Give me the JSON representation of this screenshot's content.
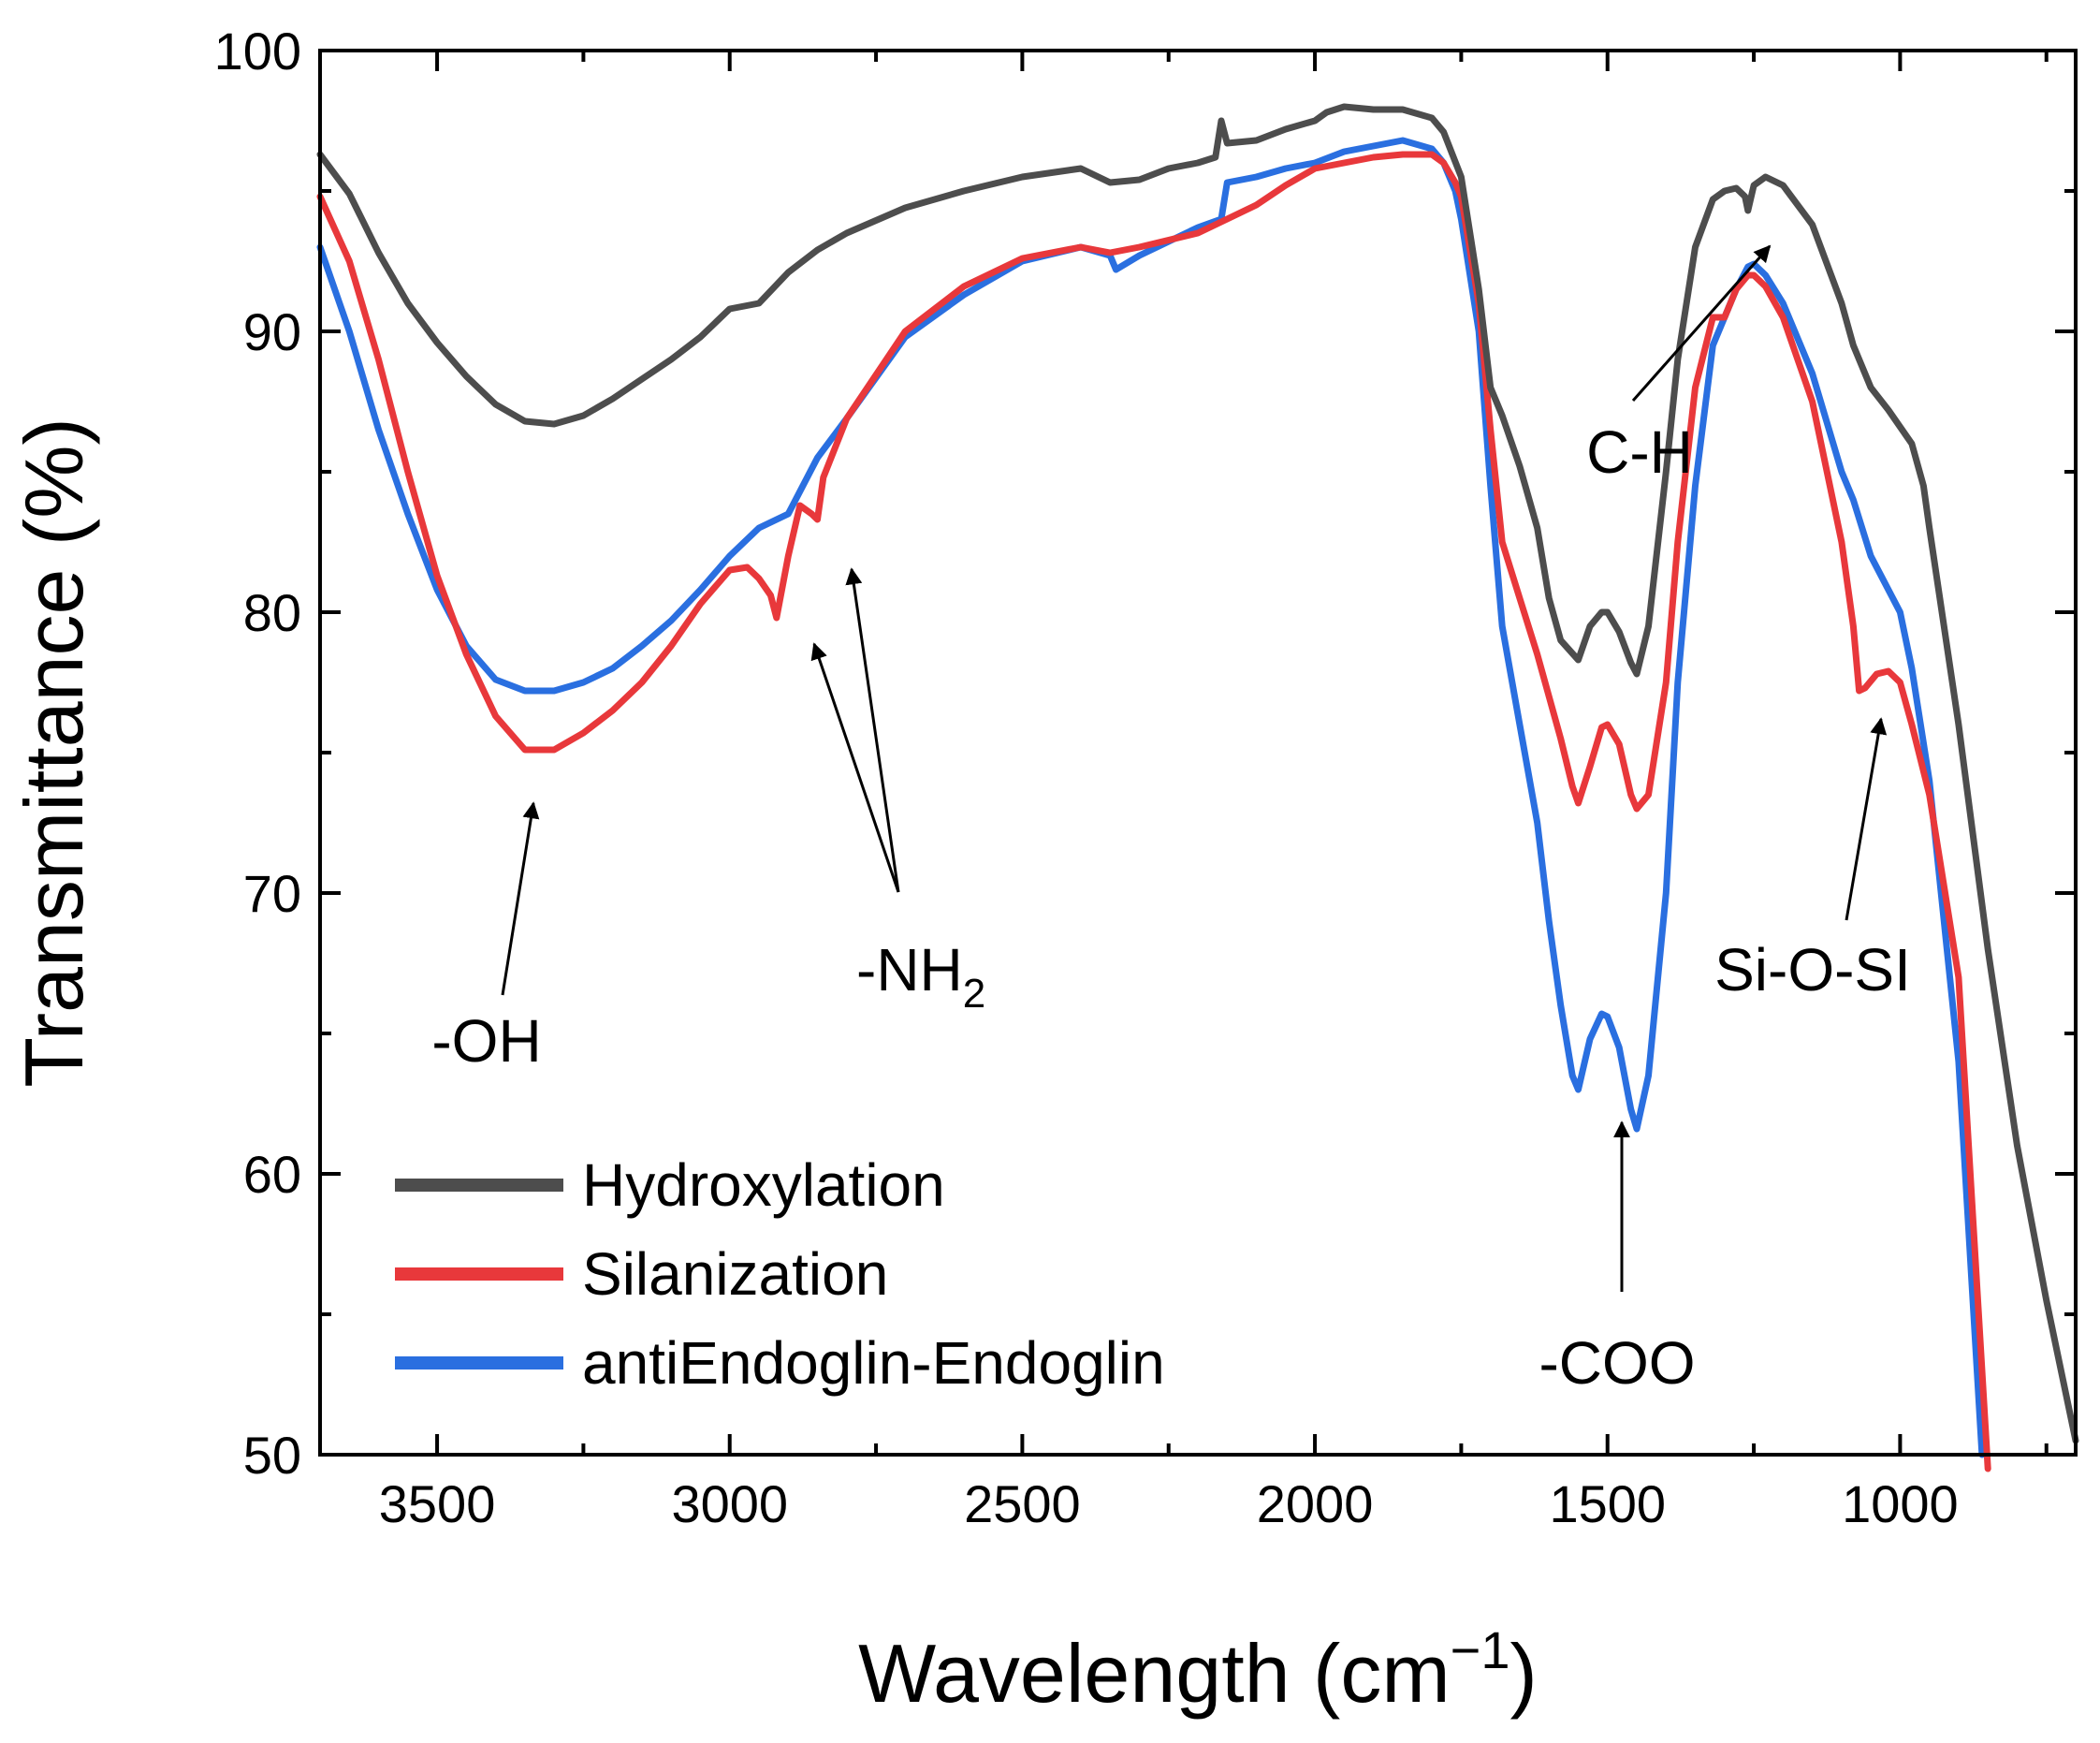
{
  "chart_data": {
    "type": "line",
    "title": "",
    "xlabel": "Wavelength (cm",
    "xlabel_sup": "−1",
    "xlabel_close": ")",
    "ylabel": "Transmittance (%)",
    "xlim": [
      3700,
      700
    ],
    "ylim": [
      50,
      100
    ],
    "x_ticks": [
      3500,
      3000,
      2500,
      2000,
      1500,
      1000
    ],
    "x_tick_labels": [
      "3500",
      "3000",
      "2500",
      "2000",
      "1500",
      "1000"
    ],
    "y_ticks": [
      50,
      60,
      70,
      80,
      90,
      100
    ],
    "y_tick_labels": [
      "50",
      "60",
      "70",
      "80",
      "90",
      "100"
    ],
    "legend_position": "bottom-left",
    "series": [
      {
        "name": "Hydroxylation",
        "color": "#4d4d4d",
        "x": [
          3700,
          3650,
          3600,
          3550,
          3500,
          3450,
          3400,
          3350,
          3300,
          3250,
          3200,
          3150,
          3100,
          3050,
          3000,
          2950,
          2900,
          2850,
          2800,
          2700,
          2600,
          2500,
          2400,
          2350,
          2300,
          2250,
          2200,
          2170,
          2160,
          2150,
          2100,
          2050,
          2000,
          1980,
          1950,
          1900,
          1850,
          1800,
          1780,
          1750,
          1720,
          1700,
          1680,
          1650,
          1620,
          1600,
          1580,
          1550,
          1530,
          1510,
          1500,
          1480,
          1460,
          1450,
          1430,
          1400,
          1380,
          1350,
          1320,
          1300,
          1280,
          1265,
          1260,
          1250,
          1230,
          1200,
          1150,
          1100,
          1080,
          1050,
          1020,
          1000,
          980,
          960,
          950,
          900,
          850,
          800,
          750,
          700
        ],
        "y": [
          96.3,
          94.9,
          92.8,
          91.0,
          89.6,
          88.4,
          87.4,
          86.8,
          86.7,
          87.0,
          87.6,
          88.3,
          89.0,
          89.8,
          90.8,
          91.0,
          92.1,
          92.9,
          93.5,
          94.4,
          95.0,
          95.5,
          95.8,
          95.3,
          95.4,
          95.8,
          96.0,
          96.2,
          97.5,
          96.7,
          96.8,
          97.2,
          97.5,
          97.8,
          98.0,
          97.9,
          97.9,
          97.6,
          97.1,
          95.5,
          91.5,
          88.0,
          87.0,
          85.2,
          83.0,
          80.5,
          79.0,
          78.3,
          79.5,
          80.0,
          80.0,
          79.3,
          78.2,
          77.8,
          79.5,
          85.0,
          89.0,
          93.0,
          94.7,
          95.0,
          95.1,
          94.8,
          94.3,
          95.2,
          95.5,
          95.2,
          93.8,
          91.0,
          89.5,
          88.0,
          87.2,
          86.6,
          86.0,
          84.5,
          83.0,
          76.0,
          68.0,
          61.0,
          55.5,
          50.5
        ]
      },
      {
        "name": "Silanization",
        "color": "#e8383b",
        "x": [
          3700,
          3650,
          3600,
          3550,
          3500,
          3450,
          3400,
          3350,
          3300,
          3250,
          3200,
          3150,
          3100,
          3050,
          3000,
          2970,
          2950,
          2930,
          2920,
          2900,
          2880,
          2860,
          2850,
          2840,
          2800,
          2700,
          2600,
          2500,
          2400,
          2350,
          2300,
          2200,
          2150,
          2100,
          2050,
          2000,
          1950,
          1900,
          1850,
          1800,
          1780,
          1760,
          1750,
          1720,
          1700,
          1680,
          1650,
          1620,
          1600,
          1580,
          1560,
          1550,
          1530,
          1510,
          1500,
          1480,
          1460,
          1450,
          1430,
          1400,
          1380,
          1350,
          1320,
          1300,
          1280,
          1260,
          1250,
          1230,
          1200,
          1150,
          1100,
          1080,
          1070,
          1060,
          1040,
          1020,
          1000,
          980,
          950,
          900,
          850
        ],
        "y": [
          94.8,
          92.5,
          89.0,
          85.0,
          81.3,
          78.5,
          76.3,
          75.1,
          75.1,
          75.7,
          76.5,
          77.5,
          78.8,
          80.3,
          81.5,
          81.6,
          81.2,
          80.6,
          79.8,
          82.0,
          83.8,
          83.5,
          83.3,
          84.8,
          86.9,
          90.0,
          91.6,
          92.6,
          93.0,
          92.8,
          93.0,
          93.5,
          94.0,
          94.5,
          95.2,
          95.8,
          96.0,
          96.2,
          96.3,
          96.3,
          96.0,
          95.3,
          94.8,
          91.0,
          86.5,
          82.5,
          80.5,
          78.5,
          77.0,
          75.5,
          73.8,
          73.2,
          74.5,
          75.9,
          76.0,
          75.3,
          73.5,
          73.0,
          73.5,
          77.5,
          82.5,
          88.0,
          90.5,
          90.5,
          91.5,
          92.0,
          92.0,
          91.6,
          90.5,
          87.5,
          82.5,
          79.5,
          77.2,
          77.3,
          77.8,
          77.9,
          77.5,
          76.0,
          73.5,
          67.0,
          49.5
        ]
      },
      {
        "name": "antiEndoglin-Endoglin",
        "color": "#2a6fe0",
        "x": [
          3700,
          3650,
          3600,
          3550,
          3500,
          3450,
          3400,
          3350,
          3300,
          3250,
          3200,
          3150,
          3100,
          3050,
          3000,
          2950,
          2900,
          2850,
          2800,
          2700,
          2600,
          2500,
          2400,
          2350,
          2340,
          2300,
          2200,
          2160,
          2150,
          2100,
          2050,
          2000,
          1950,
          1900,
          1850,
          1800,
          1780,
          1760,
          1750,
          1720,
          1700,
          1680,
          1650,
          1620,
          1600,
          1580,
          1560,
          1550,
          1530,
          1510,
          1500,
          1480,
          1460,
          1450,
          1430,
          1400,
          1380,
          1350,
          1320,
          1300,
          1280,
          1260,
          1250,
          1230,
          1200,
          1150,
          1100,
          1080,
          1050,
          1000,
          980,
          950,
          900,
          860
        ],
        "y": [
          93.0,
          90.0,
          86.5,
          83.5,
          80.8,
          78.8,
          77.6,
          77.2,
          77.2,
          77.5,
          78.0,
          78.8,
          79.7,
          80.8,
          82.0,
          83.0,
          83.5,
          85.5,
          86.9,
          89.8,
          91.3,
          92.5,
          93.0,
          92.7,
          92.2,
          92.7,
          93.7,
          94.0,
          95.3,
          95.5,
          95.8,
          96.0,
          96.4,
          96.6,
          96.8,
          96.5,
          96.0,
          95.0,
          94.0,
          90.0,
          84.5,
          79.5,
          76.0,
          72.5,
          69.0,
          66.0,
          63.5,
          63.0,
          64.8,
          65.7,
          65.6,
          64.5,
          62.3,
          61.6,
          63.5,
          70.0,
          77.5,
          84.5,
          89.5,
          90.5,
          91.5,
          92.3,
          92.4,
          92.0,
          91.0,
          88.5,
          85.0,
          84.0,
          82.0,
          80.0,
          78.0,
          74.0,
          64.0,
          50.0
        ]
      }
    ],
    "annotations": [
      {
        "text": "-OH"
      },
      {
        "text": "-NH",
        "sub": "2"
      },
      {
        "text": "C-H"
      },
      {
        "text": "-COO"
      },
      {
        "text": "Si-O-SI"
      }
    ]
  }
}
